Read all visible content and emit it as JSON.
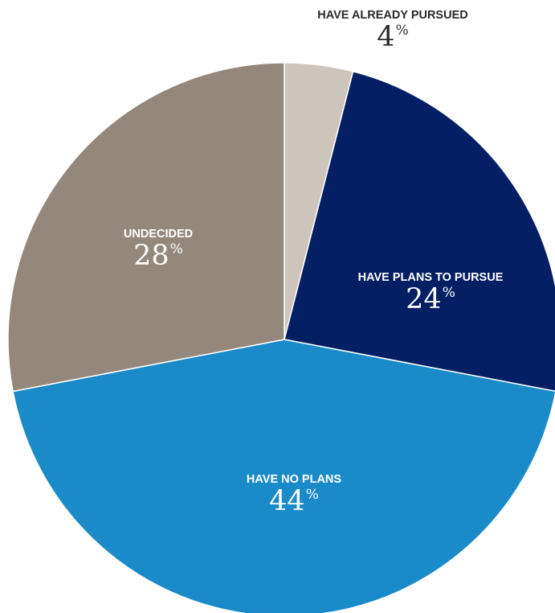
{
  "chart_data": {
    "type": "pie",
    "unit": "%",
    "start": "12 o'clock, clockwise",
    "slices": [
      {
        "label": "HAVE ALREADY PURSUED",
        "value": 4,
        "color": "#cdc4bc",
        "label_color": "#2b2b2b",
        "label_position": "outside-top"
      },
      {
        "label": "HAVE PLANS TO PURSUE",
        "value": 24,
        "color": "#041f63",
        "label_color": "#ffffff",
        "label_position": "inside"
      },
      {
        "label": "HAVE NO PLANS",
        "value": 44,
        "color": "#1b8ac8",
        "label_color": "#ffffff",
        "label_position": "inside"
      },
      {
        "label": "UNDECIDED",
        "value": 28,
        "color": "#94887d",
        "label_color": "#ffffff",
        "label_position": "inside"
      }
    ]
  }
}
